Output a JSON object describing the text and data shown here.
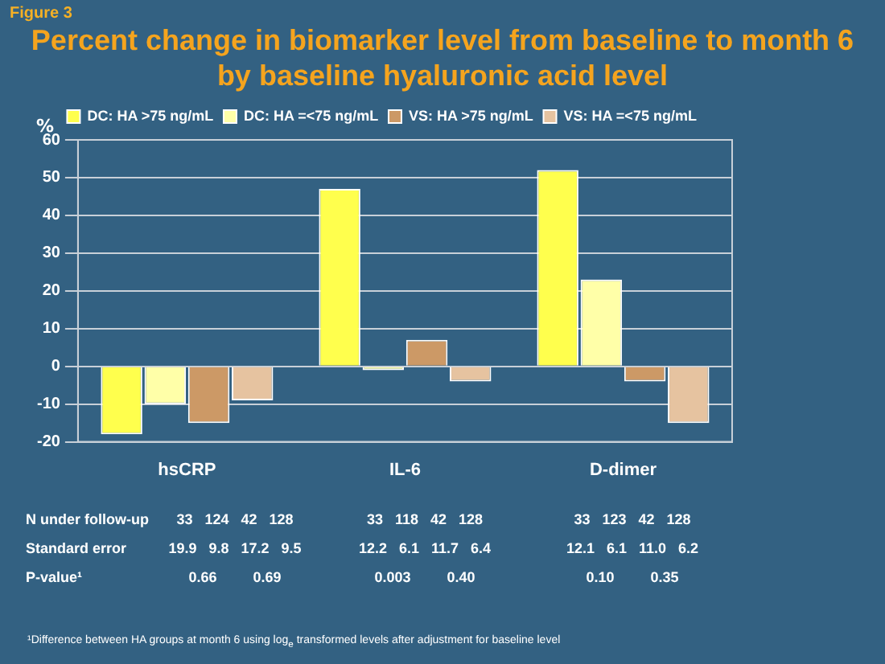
{
  "chart_data": {
    "type": "bar",
    "title": "Percent change in biomarker level from baseline to month 6 by baseline hyaluronic acid level",
    "ylabel": "%",
    "categories": [
      "hsCRP",
      "IL-6",
      "D-dimer"
    ],
    "series": [
      {
        "name": "DC: HA >75 ng/mL",
        "color": "#ffff4d",
        "values": [
          -18,
          47,
          52
        ]
      },
      {
        "name": "DC: HA =<75 ng/mL",
        "color": "#ffffa8",
        "values": [
          -10,
          -1,
          23
        ]
      },
      {
        "name": "VS: HA >75 ng/mL",
        "color": "#cc9966",
        "values": [
          -15,
          7,
          -4
        ]
      },
      {
        "name": "VS: HA =<75 ng/mL",
        "color": "#e6c3a0",
        "values": [
          -9,
          -4,
          -15
        ]
      }
    ],
    "ylim": [
      -20,
      60
    ],
    "yticks": [
      -20,
      -10,
      0,
      10,
      20,
      30,
      40,
      50,
      60
    ],
    "grid": "y",
    "legend": "top",
    "annotations": [
      "Figure 3",
      "N under follow-up",
      "33   124   42   128",
      "33   118   42   128",
      "33   123   42   128",
      "Standard error",
      "19.9   9.8   17.2   9.5",
      "12.2   6.1   11.7   6.4",
      "12.1   6.1   11.0   6.2",
      "P-value¹",
      "0.66         0.69",
      "0.003         0.40",
      "0.10         0.35",
      "¹Difference between HA groups at month 6 using log$_{e}$ transformed  levels after adjustment for baseline level"
    ]
  }
}
